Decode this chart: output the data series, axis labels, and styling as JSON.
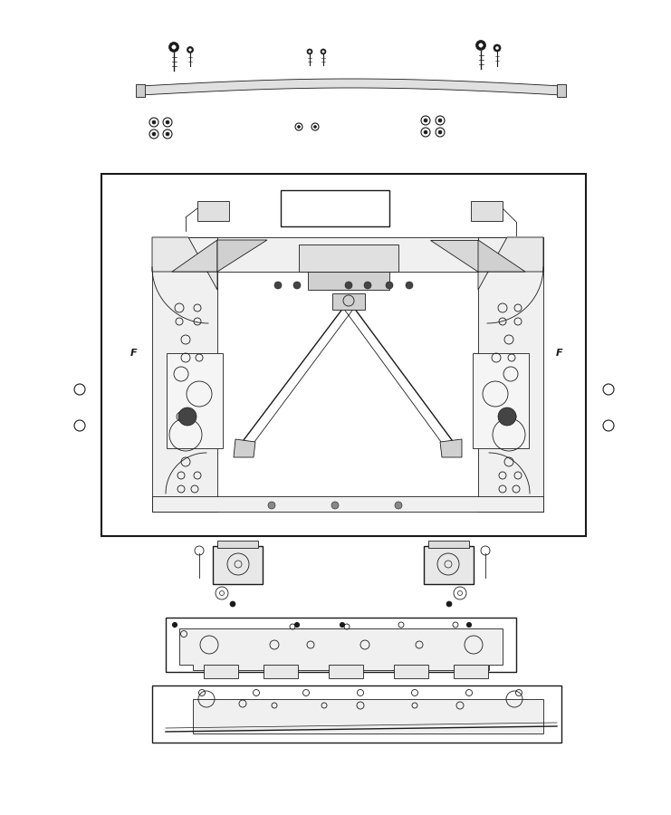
{
  "bg_color": "#ffffff",
  "line_color": "#1a1a1a",
  "dark_gray": "#444444",
  "med_gray": "#888888",
  "light_gray": "#cccccc",
  "fig_width": 7.41,
  "fig_height": 9.0,
  "dpi": 100
}
